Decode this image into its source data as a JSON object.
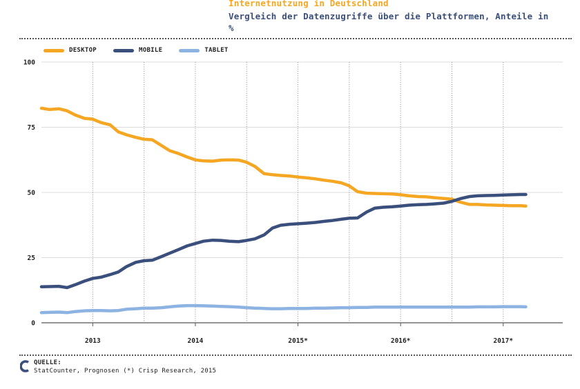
{
  "title": "Internetnutzung in Deutschland",
  "subtitle": "Vergleich der Datenzugriffe über die Plattformen, Anteile in %",
  "colors": {
    "desktop": "#f5a623",
    "mobile": "#3b4f7d",
    "tablet": "#8db3e2"
  },
  "source": {
    "label": "QUELLE:",
    "text": "StatCounter, Prognosen (*) Crisp Research, 2015"
  },
  "chart_data": {
    "type": "line",
    "title": "Internetnutzung in Deutschland",
    "subtitle": "Vergleich der Datenzugriffe über die Plattformen, Anteile in %",
    "xlabel": "",
    "ylabel": "",
    "ylim": [
      0,
      100
    ],
    "yticks": [
      0,
      25,
      50,
      75,
      100
    ],
    "xlim": [
      2012.5,
      2017.58
    ],
    "xticks": [
      {
        "value": 2013.0,
        "label": "2013"
      },
      {
        "value": 2014.0,
        "label": "2014"
      },
      {
        "value": 2015.0,
        "label": "2015*"
      },
      {
        "value": 2016.0,
        "label": "2016*"
      },
      {
        "value": 2017.0,
        "label": "2017*"
      }
    ],
    "minor_gridlines": [
      2013.5,
      2014.5,
      2015.5,
      2016.5
    ],
    "grid": true,
    "legend_position": "top-left",
    "x": [
      2012.5,
      2012.58,
      2012.67,
      2012.75,
      2012.83,
      2012.92,
      2013.0,
      2013.08,
      2013.17,
      2013.25,
      2013.33,
      2013.42,
      2013.5,
      2013.58,
      2013.67,
      2013.75,
      2013.83,
      2013.92,
      2014.0,
      2014.08,
      2014.17,
      2014.25,
      2014.33,
      2014.42,
      2014.5,
      2014.58,
      2014.67,
      2014.75,
      2014.83,
      2014.92,
      2015.0,
      2015.08,
      2015.17,
      2015.25,
      2015.33,
      2015.42,
      2015.5,
      2015.58,
      2015.67,
      2015.75,
      2015.83,
      2015.92,
      2016.0,
      2016.08,
      2016.17,
      2016.25,
      2016.33,
      2016.42,
      2016.5,
      2016.58,
      2016.67,
      2016.75,
      2016.83,
      2016.92,
      2017.0,
      2017.08,
      2017.17,
      2017.22
    ],
    "series": [
      {
        "name": "DESKTOP",
        "color": "#f5a623",
        "values": [
          82.3,
          81.8,
          82.1,
          81.3,
          79.7,
          78.4,
          78.1,
          76.8,
          75.9,
          73.2,
          72.1,
          71.1,
          70.4,
          70.2,
          68.0,
          66.0,
          65.0,
          63.6,
          62.5,
          62.1,
          62.0,
          62.4,
          62.5,
          62.4,
          61.6,
          60.0,
          57.2,
          56.8,
          56.5,
          56.3,
          55.9,
          55.6,
          55.2,
          54.7,
          54.3,
          53.7,
          52.5,
          50.3,
          49.7,
          49.6,
          49.5,
          49.4,
          49.1,
          48.7,
          48.4,
          48.3,
          48.0,
          47.7,
          47.4,
          46.3,
          45.4,
          45.4,
          45.2,
          45.1,
          45.0,
          44.9,
          44.9,
          44.8
        ]
      },
      {
        "name": "MOBILE",
        "color": "#3b4f7d",
        "values": [
          13.8,
          13.9,
          14.0,
          13.5,
          14.6,
          16.0,
          17.0,
          17.5,
          18.5,
          19.5,
          21.6,
          23.2,
          23.8,
          24.0,
          25.4,
          26.7,
          28.0,
          29.5,
          30.4,
          31.3,
          31.7,
          31.6,
          31.3,
          31.1,
          31.6,
          32.2,
          33.7,
          36.3,
          37.4,
          37.8,
          38.0,
          38.2,
          38.5,
          38.9,
          39.2,
          39.7,
          40.1,
          40.2,
          42.5,
          44.0,
          44.3,
          44.5,
          44.8,
          45.1,
          45.3,
          45.4,
          45.6,
          45.9,
          46.6,
          47.6,
          48.4,
          48.7,
          48.8,
          48.9,
          49.0,
          49.1,
          49.2,
          49.2
        ]
      },
      {
        "name": "TABLET",
        "color": "#8db3e2",
        "values": [
          3.9,
          4.0,
          4.1,
          3.9,
          4.3,
          4.6,
          4.7,
          4.7,
          4.6,
          4.7,
          5.2,
          5.4,
          5.6,
          5.6,
          5.8,
          6.1,
          6.4,
          6.6,
          6.6,
          6.5,
          6.4,
          6.3,
          6.2,
          6.0,
          5.8,
          5.6,
          5.5,
          5.4,
          5.4,
          5.5,
          5.5,
          5.5,
          5.6,
          5.6,
          5.7,
          5.8,
          5.8,
          5.9,
          5.9,
          6.0,
          6.0,
          6.0,
          6.0,
          6.0,
          6.0,
          6.0,
          6.0,
          6.0,
          6.0,
          6.0,
          6.0,
          6.1,
          6.1,
          6.1,
          6.2,
          6.2,
          6.2,
          6.1
        ]
      }
    ]
  }
}
